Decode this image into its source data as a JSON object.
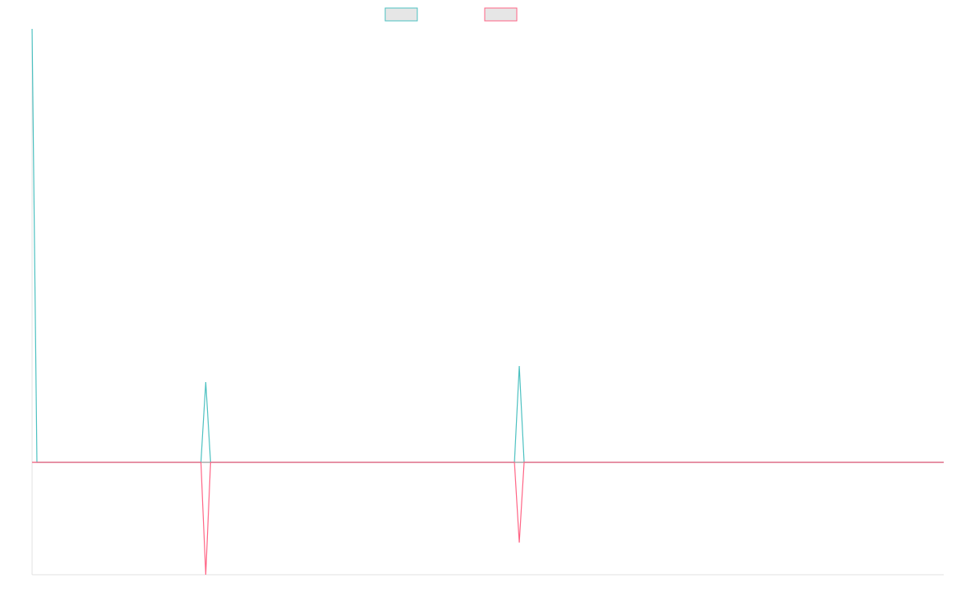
{
  "chart_data": {
    "type": "line",
    "x": [
      0,
      1,
      35,
      36,
      37,
      100,
      101,
      102,
      189
    ],
    "xlim": [
      0,
      189
    ],
    "ylim": [
      -1.4,
      5.4
    ],
    "series": [
      {
        "color": "#4bc0c0",
        "values": [
          5.4,
          0,
          0,
          1,
          0,
          0,
          1.2,
          0,
          0
        ]
      },
      {
        "color": "#ff6384",
        "values": [
          0,
          0,
          0,
          -1.4,
          0,
          0,
          -1,
          0,
          0
        ]
      }
    ]
  }
}
